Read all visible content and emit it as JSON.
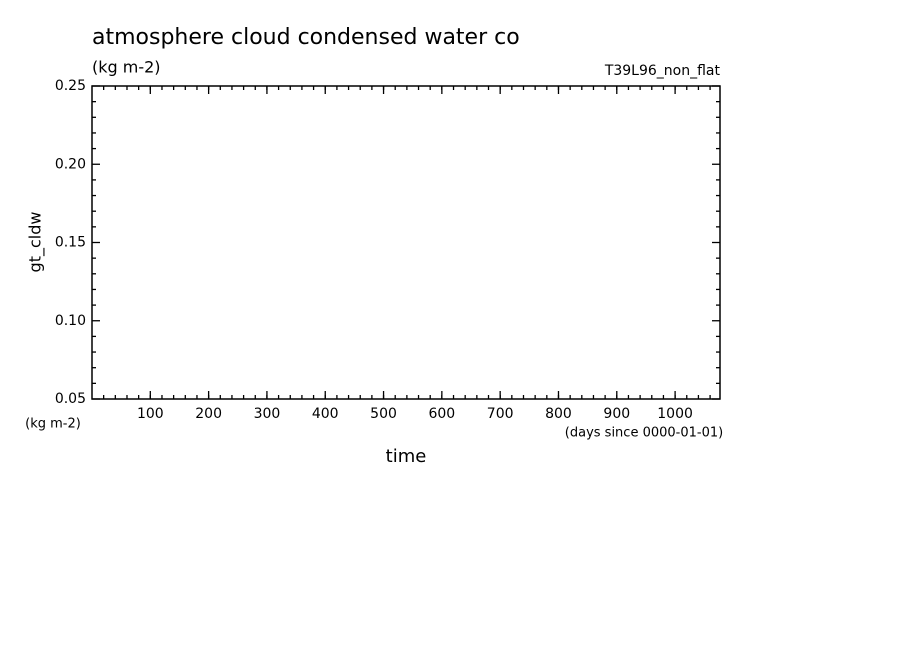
{
  "chart_data": {
    "type": "line",
    "title": "atmosphere cloud condensed water co",
    "subtitle": "(kg m-2)",
    "run_label": "T39L96_non_flat",
    "y_label": "gt_cldw",
    "y_unit": "(kg m-2)",
    "x_label": "time",
    "x_unit": "(days since 0000-01-01)",
    "series": [],
    "xlim": [
      0,
      1077
    ],
    "xticks": [
      100,
      200,
      300,
      400,
      500,
      600,
      700,
      800,
      900,
      1000
    ],
    "ylim": [
      0.05,
      0.25
    ],
    "yticks": [
      {
        "value": 0.05,
        "label": "0.05"
      },
      {
        "value": 0.1,
        "label": "0.10"
      },
      {
        "value": 0.15,
        "label": "0.15"
      },
      {
        "value": 0.2,
        "label": "0.20"
      },
      {
        "value": 0.25,
        "label": "0.25"
      }
    ]
  }
}
